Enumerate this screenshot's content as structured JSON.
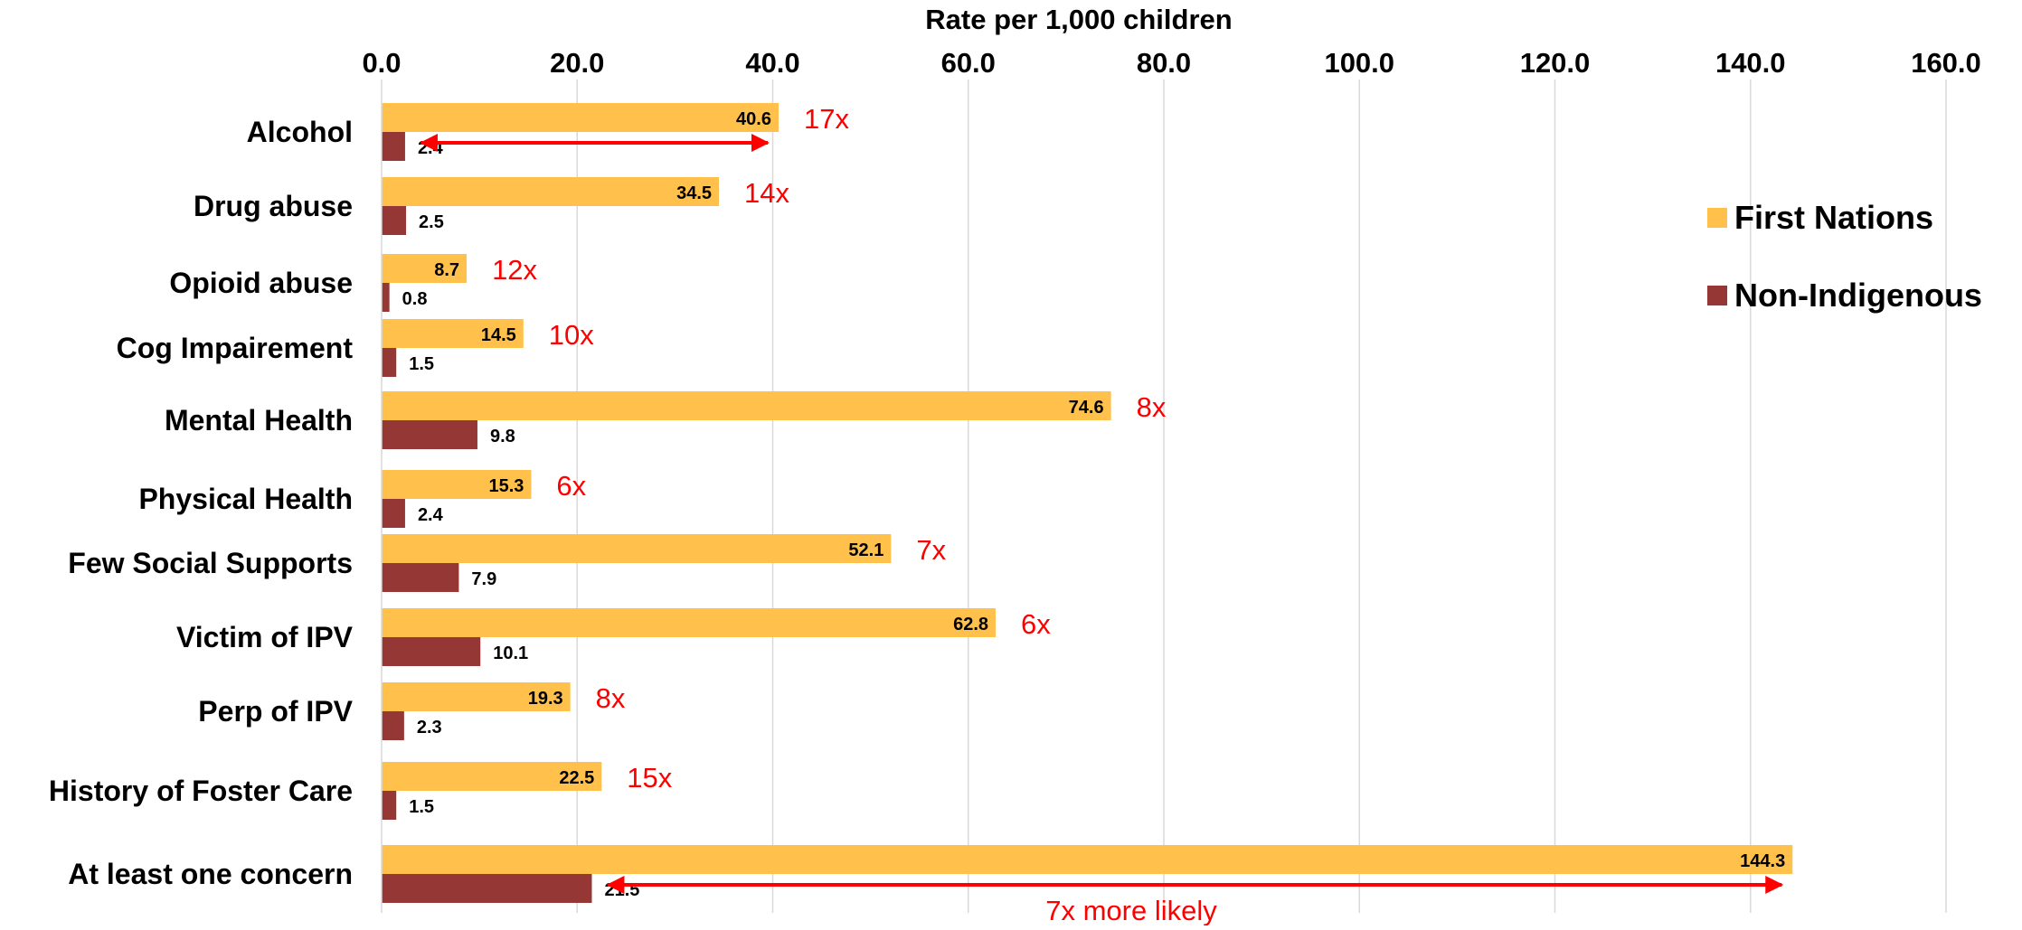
{
  "chart_data": {
    "type": "bar",
    "orientation": "horizontal",
    "x_axis_position": "top",
    "xlabel": "Rate per 1,000 children",
    "xlim": [
      0,
      160
    ],
    "x_ticks": [
      "0.0",
      "20.0",
      "40.0",
      "60.0",
      "80.0",
      "100.0",
      "120.0",
      "140.0",
      "160.0"
    ],
    "grid": true,
    "legend_position": "right",
    "categories": [
      "Alcohol",
      "Drug abuse",
      "Opioid abuse",
      "Cog Impairement",
      "Mental Health",
      "Physical Health",
      "Few Social Supports",
      "Victim of IPV",
      "Perp of IPV",
      "History of Foster Care",
      "At least one concern"
    ],
    "series": [
      {
        "name": "First Nations",
        "color": "#FFC04C",
        "values": [
          40.6,
          34.5,
          8.7,
          14.5,
          74.6,
          15.3,
          52.1,
          62.8,
          19.3,
          22.5,
          144.3
        ],
        "labels": [
          "40.6",
          "34.5",
          "8.7",
          "14.5",
          "74.6",
          "15.3",
          "52.1",
          "62.8",
          "19.3",
          "22.5",
          "144.3"
        ]
      },
      {
        "name": "Non-Indigenous",
        "color": "#953735",
        "values": [
          2.4,
          2.5,
          0.8,
          1.5,
          9.8,
          2.4,
          7.9,
          10.1,
          2.3,
          1.5,
          21.5
        ],
        "labels": [
          "2.4",
          "2.5",
          "0.8",
          "1.5",
          "9.8",
          "2.4",
          "7.9",
          "10.1",
          "2.3",
          "1.5",
          "21.5"
        ]
      }
    ],
    "annotations": {
      "color": "#FF0000",
      "ratios": [
        "17x",
        "14x",
        "12x",
        "10x",
        "8x",
        "6x",
        "7x",
        "6x",
        "8x",
        "15x",
        ""
      ],
      "arrows": [
        {
          "category": "Alcohol",
          "from": 2.4,
          "to": 40.6
        },
        {
          "category": "At least one concern",
          "from": 21.5,
          "to": 144.3
        }
      ],
      "bottom_note": "7x more likely"
    }
  }
}
